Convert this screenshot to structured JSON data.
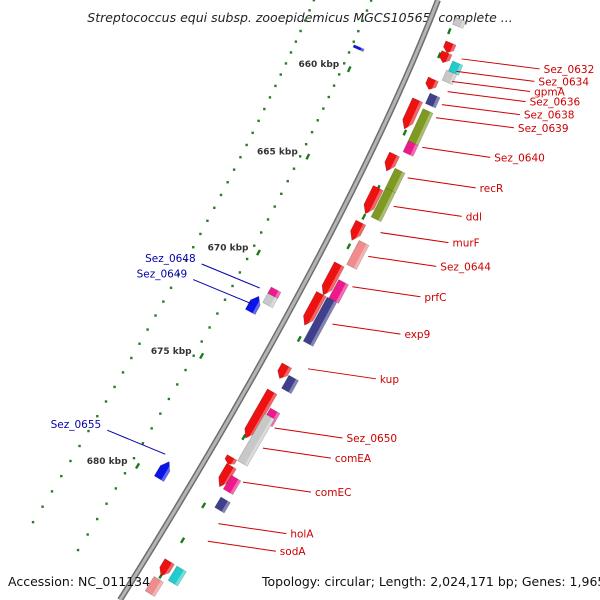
{
  "title": "Streptococcus equi subsp. zooepidemicus MGCS10565, complete ...",
  "footer": {
    "accession": "Accession: NC_011134",
    "topology": "Topology: circular; Length: 2,024,171 bp; Genes: 1,965"
  },
  "ticks": [
    {
      "label": "660 kbp",
      "t": 0.19
    },
    {
      "label": "665 kbp",
      "t": 0.355
    },
    {
      "label": "670 kbp",
      "t": 0.52
    },
    {
      "label": "675 kbp",
      "t": 0.685
    },
    {
      "label": "680 kbp",
      "t": 0.85
    }
  ],
  "genes_right": [
    {
      "name": "Sez_0632",
      "t": 0.09
    },
    {
      "name": "Sez_0634",
      "t": 0.115
    },
    {
      "name": "gpmA",
      "t": 0.135
    },
    {
      "name": "Sez_0636",
      "t": 0.155
    },
    {
      "name": "Sez_0638",
      "t": 0.18
    },
    {
      "name": "Sez_0639",
      "t": 0.205
    },
    {
      "name": "Sez_0640",
      "t": 0.26
    },
    {
      "name": "recR",
      "t": 0.315
    },
    {
      "name": "ddl",
      "t": 0.365
    },
    {
      "name": "murF",
      "t": 0.41
    },
    {
      "name": "Sez_0644",
      "t": 0.45
    },
    {
      "name": "prfC",
      "t": 0.5
    },
    {
      "name": "exp9",
      "t": 0.56
    },
    {
      "name": "kup",
      "t": 0.63
    },
    {
      "name": "Sez_0650",
      "t": 0.72
    },
    {
      "name": "comEA",
      "t": 0.75
    },
    {
      "name": "comEC",
      "t": 0.8
    },
    {
      "name": "holA",
      "t": 0.86
    },
    {
      "name": "sodA",
      "t": 0.885
    }
  ],
  "genes_left": [
    {
      "name": "Sez_0648",
      "t": 0.565
    },
    {
      "name": "Sez_0649",
      "t": 0.59
    },
    {
      "name": "Sez_0655",
      "t": 0.82
    }
  ],
  "colors": {
    "backbone": "#8c8c8c",
    "gene_red": "#ee1111",
    "gene_green": "#7e9a22",
    "gene_navy": "#3f3f8c",
    "gene_pink": "#f08c8c",
    "gene_magenta": "#ee1a8c",
    "gene_cyan": "#22cccc",
    "gene_gray": "#c8c8c8",
    "gene_blue": "#0a14e6",
    "label_right": "#cc0000",
    "label_left": "#0000aa",
    "tick_mark": "#1a7a1a"
  }
}
